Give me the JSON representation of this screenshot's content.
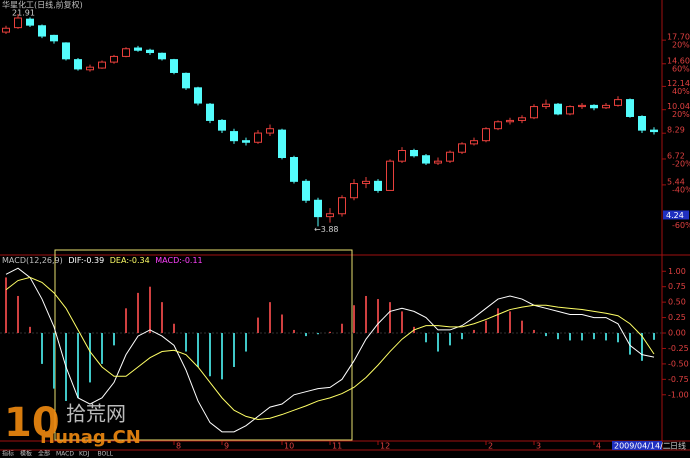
{
  "chart_data": {
    "type": "candlestick",
    "title": "华星化工(日线,前复权)",
    "up_color": "#e8403c",
    "down_color": "#54fcfc",
    "candles": [
      [
        18.9,
        19.9,
        18.6,
        19.5
      ],
      [
        19.6,
        21.91,
        19.4,
        21.2
      ],
      [
        21.0,
        21.3,
        19.7,
        20.0
      ],
      [
        19.9,
        20.1,
        18.0,
        18.3
      ],
      [
        18.4,
        18.5,
        17.2,
        17.6
      ],
      [
        17.3,
        17.4,
        15.0,
        15.2
      ],
      [
        15.1,
        15.3,
        13.8,
        14.0
      ],
      [
        13.9,
        14.5,
        13.7,
        14.2
      ],
      [
        14.1,
        15.0,
        14.0,
        14.8
      ],
      [
        14.8,
        15.7,
        14.6,
        15.5
      ],
      [
        15.5,
        16.7,
        15.4,
        16.5
      ],
      [
        16.6,
        16.9,
        16.1,
        16.3
      ],
      [
        16.3,
        16.5,
        15.7,
        16.0
      ],
      [
        15.9,
        16.0,
        15.0,
        15.2
      ],
      [
        15.1,
        15.2,
        13.4,
        13.6
      ],
      [
        13.5,
        13.6,
        11.8,
        12.0
      ],
      [
        12.0,
        12.1,
        10.4,
        10.6
      ],
      [
        10.5,
        10.6,
        9.0,
        9.2
      ],
      [
        9.2,
        9.3,
        8.3,
        8.5
      ],
      [
        8.4,
        8.6,
        7.6,
        7.8
      ],
      [
        7.8,
        8.0,
        7.5,
        7.7
      ],
      [
        7.7,
        8.5,
        7.6,
        8.3
      ],
      [
        8.3,
        8.9,
        8.1,
        8.6
      ],
      [
        8.5,
        8.6,
        6.7,
        6.8
      ],
      [
        6.8,
        6.9,
        5.5,
        5.6
      ],
      [
        5.6,
        5.7,
        4.7,
        4.8
      ],
      [
        4.8,
        4.9,
        3.88,
        4.2
      ],
      [
        4.2,
        4.5,
        4.0,
        4.3
      ],
      [
        4.3,
        5.0,
        4.2,
        4.9
      ],
      [
        4.9,
        5.7,
        4.8,
        5.5
      ],
      [
        5.5,
        5.8,
        5.3,
        5.6
      ],
      [
        5.6,
        5.7,
        5.1,
        5.2
      ],
      [
        5.2,
        6.7,
        5.2,
        6.6
      ],
      [
        6.6,
        7.4,
        6.5,
        7.2
      ],
      [
        7.2,
        7.3,
        6.8,
        6.9
      ],
      [
        6.9,
        7.0,
        6.4,
        6.5
      ],
      [
        6.5,
        6.8,
        6.4,
        6.6
      ],
      [
        6.6,
        7.2,
        6.5,
        7.1
      ],
      [
        7.1,
        7.7,
        7.0,
        7.6
      ],
      [
        7.6,
        8.0,
        7.5,
        7.8
      ],
      [
        7.8,
        8.7,
        7.7,
        8.6
      ],
      [
        8.6,
        9.2,
        8.5,
        9.1
      ],
      [
        9.1,
        9.4,
        8.9,
        9.2
      ],
      [
        9.2,
        9.6,
        9.0,
        9.4
      ],
      [
        9.4,
        10.5,
        9.3,
        10.3
      ],
      [
        10.3,
        10.9,
        10.1,
        10.5
      ],
      [
        10.5,
        10.6,
        9.6,
        9.7
      ],
      [
        9.7,
        10.4,
        9.6,
        10.3
      ],
      [
        10.3,
        10.6,
        10.1,
        10.4
      ],
      [
        10.4,
        10.5,
        10.0,
        10.2
      ],
      [
        10.2,
        10.6,
        10.1,
        10.4
      ],
      [
        10.4,
        11.2,
        10.3,
        10.9
      ],
      [
        10.9,
        11.0,
        9.4,
        9.5
      ],
      [
        9.5,
        9.6,
        8.3,
        8.5
      ],
      [
        8.5,
        8.7,
        8.2,
        8.4
      ]
    ],
    "log_scale": true,
    "ylim": [
      3.2,
      23
    ],
    "yticks": [
      {
        "value": 17.7,
        "label": "17.70",
        "pct": "20%"
      },
      {
        "value": 14.6,
        "label": "14.60",
        "pct": "60%"
      },
      {
        "value": 12.14,
        "label": "12.14",
        "pct": "40%"
      },
      {
        "value": 10.04,
        "label": "10.04",
        "pct": "20%"
      },
      {
        "value": 8.29,
        "label": "8.29"
      },
      {
        "value": 6.72,
        "label": "6.72",
        "pct": "-20%"
      },
      {
        "value": 5.44,
        "label": "5.44",
        "pct": "-40%"
      }
    ],
    "cursor_tick": {
      "value": 4.24,
      "label": "4.24",
      "pct": "-60%"
    },
    "annotations": [
      {
        "value": 21.91,
        "label": "21.91",
        "index": 1
      },
      {
        "value": 3.88,
        "label": "←3.88",
        "index": 26
      }
    ],
    "xticks": [
      {
        "value": 14,
        "label": "8"
      },
      {
        "value": 18,
        "label": "9"
      },
      {
        "value": 23,
        "label": "10"
      },
      {
        "value": 27,
        "label": "11"
      },
      {
        "value": 31,
        "label": "12"
      },
      {
        "value": 40,
        "label": "2"
      },
      {
        "value": 44,
        "label": "3"
      },
      {
        "value": 49,
        "label": "4"
      }
    ],
    "date_label": "2009/04/14/二",
    "period_label": "日线",
    "macd": {
      "title": "MACD(12,26,9)",
      "dif_label": "DIF:-0.39",
      "dea_label": "DEA:-0.34",
      "macd_label": "MACD:-0.11",
      "ylim": [
        -1.7,
        1.15
      ],
      "yticks": [
        {
          "value": 1,
          "label": "1.00"
        },
        {
          "value": 0.75,
          "label": "0.75"
        },
        {
          "value": 0.5,
          "label": "0.50"
        },
        {
          "value": 0.25,
          "label": "0.25"
        },
        {
          "value": 0,
          "label": "0.00"
        },
        {
          "value": -0.25,
          "label": "-0.25"
        },
        {
          "value": -0.5,
          "label": "-0.50"
        },
        {
          "value": -0.75,
          "label": "-0.75"
        },
        {
          "value": -1,
          "label": "-1.00"
        }
      ],
      "series": [
        {
          "name": "DIF",
          "color": "#ffffff",
          "values": [
            0.95,
            1.05,
            0.9,
            0.55,
            0.1,
            -0.55,
            -1.05,
            -1.15,
            -1.05,
            -0.8,
            -0.35,
            -0.05,
            0.05,
            -0.05,
            -0.2,
            -0.6,
            -1.1,
            -1.45,
            -1.6,
            -1.6,
            -1.5,
            -1.35,
            -1.2,
            -1.15,
            -1.0,
            -0.95,
            -0.9,
            -0.88,
            -0.75,
            -0.45,
            -0.1,
            0.15,
            0.35,
            0.4,
            0.35,
            0.25,
            0.05,
            0.05,
            0.12,
            0.25,
            0.4,
            0.55,
            0.6,
            0.55,
            0.45,
            0.4,
            0.35,
            0.3,
            0.3,
            0.25,
            0.25,
            0.15,
            -0.2,
            -0.35,
            -0.39
          ]
        },
        {
          "name": "DEA",
          "color": "#ffff66",
          "values": [
            0.7,
            0.85,
            0.9,
            0.82,
            0.65,
            0.4,
            0.05,
            -0.3,
            -0.55,
            -0.7,
            -0.7,
            -0.55,
            -0.4,
            -0.3,
            -0.28,
            -0.35,
            -0.55,
            -0.8,
            -1.05,
            -1.25,
            -1.35,
            -1.4,
            -1.38,
            -1.32,
            -1.25,
            -1.18,
            -1.1,
            -1.05,
            -0.98,
            -0.88,
            -0.72,
            -0.52,
            -0.3,
            -0.1,
            0.05,
            0.12,
            0.12,
            0.1,
            0.1,
            0.15,
            0.22,
            0.3,
            0.38,
            0.42,
            0.45,
            0.45,
            0.42,
            0.4,
            0.38,
            0.35,
            0.32,
            0.28,
            0.15,
            -0.05,
            -0.34
          ]
        }
      ],
      "histogram": [
        0.9,
        0.6,
        0.1,
        -0.5,
        -0.9,
        -1.1,
        -1.05,
        -0.8,
        -0.5,
        -0.2,
        0.4,
        0.65,
        0.75,
        0.5,
        0.15,
        -0.3,
        -0.55,
        -0.7,
        -0.75,
        -0.55,
        -0.3,
        0.25,
        0.5,
        0.3,
        0.05,
        -0.05,
        -0.02,
        0.02,
        0.15,
        0.45,
        0.6,
        0.55,
        0.5,
        0.35,
        0.1,
        -0.15,
        -0.3,
        -0.2,
        -0.1,
        0.05,
        0.2,
        0.4,
        0.35,
        0.2,
        0.05,
        -0.05,
        -0.1,
        -0.12,
        -0.12,
        -0.1,
        -0.12,
        -0.15,
        -0.35,
        -0.45,
        -0.11
      ]
    },
    "tabs": [
      "指标",
      "模板",
      "全部",
      "MACD",
      "KDJ",
      "BOLL"
    ],
    "watermark": {
      "number": "10",
      "name": "拾荒网",
      "site": "Hunag.CN"
    }
  }
}
